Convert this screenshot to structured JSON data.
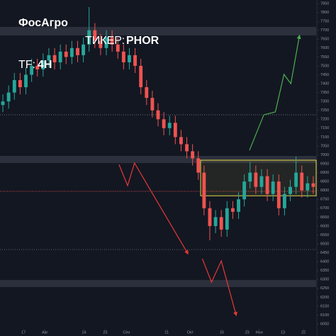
{
  "chart_data": {
    "type": "candlestick",
    "title": "ФосАгро",
    "ticker_label": "ТИКЕР:",
    "ticker": "PHOR",
    "tf_label": "TF:",
    "tf": "4H",
    "up_color": "#26a69a",
    "down_color": "#ef5350",
    "open": [
      7280,
      7300,
      7350,
      7420,
      7380,
      7450,
      7500,
      7480,
      7530,
      7560,
      7520,
      7580,
      7550,
      7600,
      7560,
      7620,
      7700,
      7640,
      7600,
      7660,
      7620,
      7580,
      7520,
      7560,
      7500,
      7380,
      7320,
      7250,
      7200,
      7150,
      7180,
      7100,
      7060,
      7020,
      6980,
      6900,
      6700,
      6600,
      6650,
      6580,
      6700,
      6680,
      6750,
      6850,
      6900,
      6820,
      6880,
      6780,
      6850,
      6700,
      6780,
      6820,
      6900,
      6800,
      6840
    ],
    "high": [
      7340,
      7390,
      7460,
      7460,
      7490,
      7540,
      7540,
      7570,
      7600,
      7600,
      7620,
      7620,
      7640,
      7640,
      7660,
      7830,
      7740,
      7680,
      7700,
      7700,
      7660,
      7620,
      7600,
      7600,
      7540,
      7420,
      7360,
      7290,
      7240,
      7220,
      7220,
      7140,
      7100,
      7060,
      7020,
      6940,
      6740,
      6690,
      6690,
      6740,
      6740,
      6790,
      6890,
      6960,
      6940,
      6920,
      6920,
      6890,
      6890,
      6820,
      6860,
      6990,
      6940,
      6880,
      6880
    ],
    "low": [
      7240,
      7260,
      7310,
      7340,
      7340,
      7410,
      7440,
      7440,
      7490,
      7480,
      7480,
      7510,
      7510,
      7520,
      7520,
      7580,
      7600,
      7560,
      7560,
      7580,
      7540,
      7480,
      7480,
      7460,
      7340,
      7280,
      7210,
      7160,
      7110,
      7110,
      7060,
      7020,
      6980,
      6940,
      6860,
      6660,
      6520,
      6560,
      6540,
      6540,
      6640,
      6640,
      6710,
      6810,
      6780,
      6780,
      6740,
      6740,
      6660,
      6660,
      6740,
      6780,
      6760,
      6760,
      6780
    ],
    "close": [
      7300,
      7350,
      7420,
      7380,
      7450,
      7500,
      7480,
      7530,
      7560,
      7520,
      7580,
      7550,
      7600,
      7560,
      7620,
      7700,
      7640,
      7600,
      7660,
      7620,
      7580,
      7520,
      7560,
      7500,
      7380,
      7320,
      7250,
      7200,
      7150,
      7180,
      7100,
      7060,
      7020,
      6980,
      6900,
      6700,
      6600,
      6650,
      6580,
      6700,
      6680,
      6750,
      6850,
      6900,
      6820,
      6880,
      6780,
      6850,
      6700,
      6780,
      6820,
      6900,
      6800,
      6840,
      6820
    ],
    "xlim": [
      -0.5,
      54.5
    ],
    "xticks": [
      {
        "value": 3.6,
        "label": "17"
      },
      {
        "value": 7.3,
        "label": "Авг"
      },
      {
        "value": 14.1,
        "label": "14"
      },
      {
        "value": 17.8,
        "label": "23"
      },
      {
        "value": 21.5,
        "label": "Сен"
      },
      {
        "value": 28.5,
        "label": "11"
      },
      {
        "value": 32.6,
        "label": "Окт"
      },
      {
        "value": 38.1,
        "label": "16"
      },
      {
        "value": 42.5,
        "label": "23"
      },
      {
        "value": 44.6,
        "label": "Ноя"
      },
      {
        "value": 48.7,
        "label": "13"
      },
      {
        "value": 52.3,
        "label": "22"
      }
    ],
    "ylim": [
      6030,
      7870
    ],
    "yticks": [
      6050,
      6100,
      6150,
      6200,
      6250,
      6300,
      6350,
      6400,
      6450,
      6500,
      6550,
      6600,
      6650,
      6700,
      6750,
      6800,
      6850,
      6900,
      6950,
      7000,
      7050,
      7100,
      7150,
      7200,
      7250,
      7300,
      7350,
      7400,
      7450,
      7500,
      7550,
      7600,
      7650,
      7700,
      7750,
      7800,
      7850
    ],
    "bands": [
      [
        7671,
        7719
      ],
      [
        6954,
        6994
      ],
      [
        6257,
        6297
      ]
    ],
    "dotted_levels": [
      7225,
      6468
    ],
    "red_level": 6795,
    "box": {
      "x": [
        34.4,
        54.5
      ],
      "y": [
        6770,
        6970
      ],
      "color": "#e6d84a"
    },
    "arrows": [
      {
        "color": "#4caf50",
        "x": [
          42.9,
          45.4,
          47.4,
          48.9,
          50.1,
          51.6
        ],
        "y": [
          7026,
          7225,
          7241,
          7452,
          7400,
          7671
        ]
      },
      {
        "color": "#e53935",
        "x": [
          20.2,
          21.7,
          22.9,
          32.2
        ],
        "y": [
          6946,
          6827,
          6954,
          6444
        ]
      },
      {
        "color": "#e53935",
        "x": [
          34.7,
          36.3,
          38.0,
          40.6
        ],
        "y": [
          6416,
          6285,
          6404,
          6098
        ]
      }
    ]
  }
}
